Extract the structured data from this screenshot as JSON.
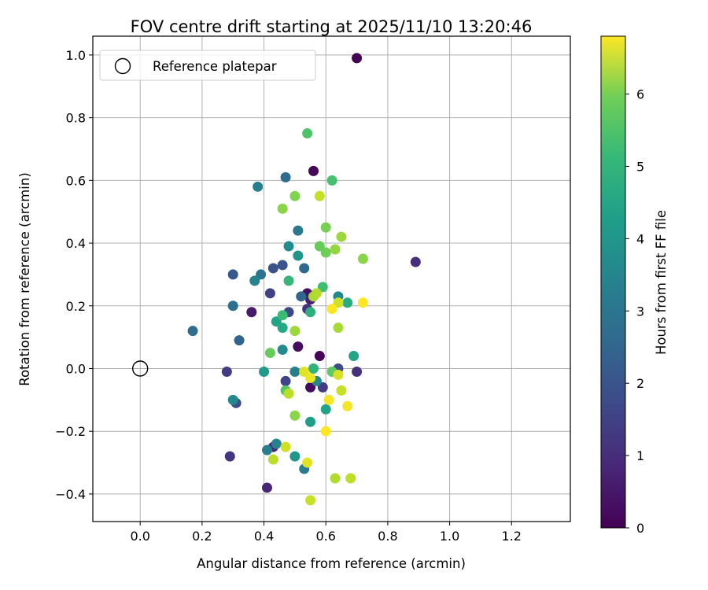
{
  "chart_data": {
    "type": "scatter",
    "title": "FOV centre drift starting at 2025/11/10 13:20:46",
    "xlabel": "Angular distance from reference (arcmin)",
    "ylabel": "Rotation from reference (arcmin)",
    "xlim": [
      -0.153,
      1.39
    ],
    "ylim": [
      -0.488,
      1.06
    ],
    "xticks": [
      0.0,
      0.2,
      0.4,
      0.6,
      0.8,
      1.0,
      1.2
    ],
    "xtick_labels": [
      "0.0",
      "0.2",
      "0.4",
      "0.6",
      "0.8",
      "1.0",
      "1.2"
    ],
    "yticks": [
      -0.4,
      -0.2,
      0.0,
      0.2,
      0.4,
      0.6,
      0.8,
      1.0
    ],
    "ytick_labels": [
      "−0.4",
      "−0.2",
      "0.0",
      "0.2",
      "0.4",
      "0.6",
      "0.8",
      "1.0"
    ],
    "grid": true,
    "legend": {
      "position": "top-left",
      "entries": [
        "Reference platepar"
      ]
    },
    "reference_point": {
      "name": "Reference platepar",
      "x": 0.0,
      "y": 0.0
    },
    "colorbar": {
      "label": "Hours from first FF file",
      "colormap": "viridis",
      "range": [
        0,
        6.8
      ],
      "ticks": [
        0,
        1,
        2,
        3,
        4,
        5,
        6
      ],
      "tick_labels": [
        "0",
        "1",
        "2",
        "3",
        "4",
        "5",
        "6"
      ]
    },
    "points": [
      [
        0.7,
        0.99,
        0.0
      ],
      [
        0.56,
        0.63,
        0.1
      ],
      [
        0.36,
        0.18,
        0.5
      ],
      [
        0.51,
        0.07,
        0.2
      ],
      [
        0.54,
        0.24,
        0.3
      ],
      [
        0.58,
        0.04,
        0.1
      ],
      [
        0.55,
        -0.06,
        0.2
      ],
      [
        0.41,
        -0.38,
        0.7
      ],
      [
        0.89,
        0.34,
        0.9
      ],
      [
        0.7,
        -0.01,
        1.0
      ],
      [
        0.29,
        -0.28,
        1.1
      ],
      [
        0.28,
        -0.01,
        1.2
      ],
      [
        0.42,
        0.24,
        1.3
      ],
      [
        0.47,
        -0.04,
        1.4
      ],
      [
        0.59,
        -0.06,
        1.2
      ],
      [
        0.43,
        -0.25,
        0.8
      ],
      [
        0.31,
        -0.11,
        1.6
      ],
      [
        0.54,
        0.19,
        1.0
      ],
      [
        0.48,
        0.18,
        1.5
      ],
      [
        0.55,
        0.22,
        0.6
      ],
      [
        0.43,
        0.32,
        1.7
      ],
      [
        0.46,
        0.33,
        1.8
      ],
      [
        0.64,
        0.0,
        1.6
      ],
      [
        0.3,
        0.3,
        1.9
      ],
      [
        0.32,
        0.09,
        2.2
      ],
      [
        0.17,
        0.12,
        2.4
      ],
      [
        0.3,
        0.2,
        2.5
      ],
      [
        0.53,
        0.32,
        2.3
      ],
      [
        0.47,
        0.61,
        2.4
      ],
      [
        0.52,
        0.23,
        2.2
      ],
      [
        0.39,
        0.3,
        2.6
      ],
      [
        0.38,
        0.58,
        2.9
      ],
      [
        0.51,
        0.44,
        2.7
      ],
      [
        0.37,
        0.28,
        3.0
      ],
      [
        0.53,
        -0.32,
        2.8
      ],
      [
        0.41,
        -0.26,
        2.9
      ],
      [
        0.44,
        -0.24,
        3.0
      ],
      [
        0.3,
        -0.1,
        3.2
      ],
      [
        0.5,
        -0.01,
        2.9
      ],
      [
        0.57,
        -0.04,
        3.1
      ],
      [
        0.46,
        0.06,
        3.2
      ],
      [
        0.64,
        0.23,
        3.2
      ],
      [
        0.48,
        0.39,
        3.3
      ],
      [
        0.51,
        0.36,
        3.5
      ],
      [
        0.5,
        -0.28,
        3.6
      ],
      [
        0.4,
        -0.01,
        3.7
      ],
      [
        0.55,
        -0.17,
        3.8
      ],
      [
        0.6,
        -0.13,
        3.9
      ],
      [
        0.44,
        0.15,
        4.0
      ],
      [
        0.46,
        0.13,
        4.1
      ],
      [
        0.69,
        0.04,
        4.0
      ],
      [
        0.67,
        0.21,
        4.2
      ],
      [
        0.55,
        0.18,
        4.3
      ],
      [
        0.56,
        0.0,
        4.4
      ],
      [
        0.48,
        0.28,
        4.5
      ],
      [
        0.46,
        0.17,
        4.6
      ],
      [
        0.59,
        0.26,
        4.7
      ],
      [
        0.62,
        0.6,
        4.8
      ],
      [
        0.54,
        0.75,
        4.9
      ],
      [
        0.47,
        -0.07,
        5.0
      ],
      [
        0.62,
        -0.01,
        5.1
      ],
      [
        0.58,
        0.39,
        5.2
      ],
      [
        0.6,
        0.37,
        5.3
      ],
      [
        0.6,
        0.45,
        5.4
      ],
      [
        0.42,
        0.05,
        5.2
      ],
      [
        0.5,
        0.55,
        5.5
      ],
      [
        0.46,
        0.51,
        5.6
      ],
      [
        0.63,
        0.38,
        5.7
      ],
      [
        0.5,
        -0.15,
        5.6
      ],
      [
        0.65,
        0.42,
        5.8
      ],
      [
        0.72,
        0.35,
        5.6
      ],
      [
        0.56,
        0.23,
        5.9
      ],
      [
        0.57,
        0.24,
        6.0
      ],
      [
        0.64,
        0.13,
        5.9
      ],
      [
        0.5,
        0.12,
        5.8
      ],
      [
        0.48,
        -0.08,
        6.1
      ],
      [
        0.63,
        -0.35,
        6.0
      ],
      [
        0.68,
        -0.35,
        6.1
      ],
      [
        0.55,
        -0.42,
        6.2
      ],
      [
        0.43,
        -0.29,
        6.1
      ],
      [
        0.47,
        -0.25,
        6.3
      ],
      [
        0.58,
        0.55,
        6.2
      ],
      [
        0.64,
        0.21,
        6.3
      ],
      [
        0.65,
        -0.07,
        6.2
      ],
      [
        0.64,
        -0.02,
        6.4
      ],
      [
        0.53,
        -0.01,
        6.5
      ],
      [
        0.54,
        -0.3,
        6.5
      ],
      [
        0.55,
        -0.03,
        6.6
      ],
      [
        0.61,
        -0.1,
        6.7
      ],
      [
        0.62,
        0.19,
        6.8
      ],
      [
        0.72,
        0.21,
        6.8
      ],
      [
        0.6,
        -0.2,
        6.8
      ],
      [
        0.67,
        -0.12,
        6.7
      ]
    ]
  }
}
